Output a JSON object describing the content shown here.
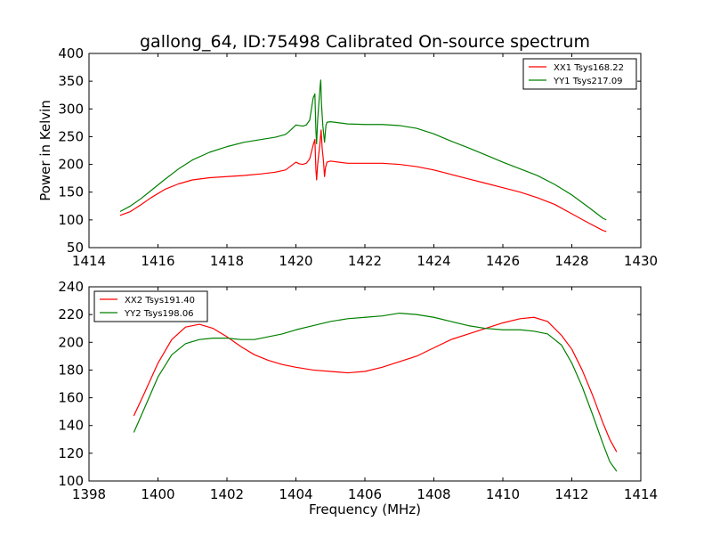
{
  "title": "gallong_64, ID:75498 Calibrated On-source spectrum",
  "colors": {
    "red": "#ff0000",
    "green": "#008000"
  },
  "chart_data": [
    {
      "type": "line",
      "xlabel": "",
      "ylabel": "Power in Kelvin",
      "xlim": [
        1414,
        1430
      ],
      "ylim": [
        50,
        400
      ],
      "xticks": [
        1414,
        1416,
        1418,
        1420,
        1422,
        1424,
        1426,
        1428,
        1430
      ],
      "yticks": [
        50,
        100,
        150,
        200,
        250,
        300,
        350,
        400
      ],
      "legend_position": "top-right",
      "series": [
        {
          "name": "XX1 Tsys168.22",
          "color": "#ff0000",
          "points": [
            [
              1414.9,
              108
            ],
            [
              1415.2,
              115
            ],
            [
              1415.5,
              127
            ],
            [
              1415.8,
              140
            ],
            [
              1416.2,
              155
            ],
            [
              1416.6,
              165
            ],
            [
              1417,
              172
            ],
            [
              1417.5,
              176
            ],
            [
              1418,
              178
            ],
            [
              1418.5,
              180
            ],
            [
              1419,
              183
            ],
            [
              1419.4,
              186
            ],
            [
              1419.7,
              190
            ],
            [
              1419.85,
              197
            ],
            [
              1420,
              204
            ],
            [
              1420.1,
              201
            ],
            [
              1420.2,
              200
            ],
            [
              1420.3,
              202
            ],
            [
              1420.4,
              210
            ],
            [
              1420.5,
              235
            ],
            [
              1420.55,
              245
            ],
            [
              1420.58,
              190
            ],
            [
              1420.6,
              172
            ],
            [
              1420.63,
              200
            ],
            [
              1420.7,
              240
            ],
            [
              1420.73,
              262
            ],
            [
              1420.76,
              230
            ],
            [
              1420.8,
              205
            ],
            [
              1420.83,
              178
            ],
            [
              1420.86,
              195
            ],
            [
              1420.9,
              204
            ],
            [
              1421,
              206
            ],
            [
              1421.5,
              202
            ],
            [
              1422,
              202
            ],
            [
              1422.5,
              202
            ],
            [
              1423,
              200
            ],
            [
              1423.5,
              196
            ],
            [
              1424,
              190
            ],
            [
              1424.5,
              182
            ],
            [
              1425,
              174
            ],
            [
              1425.5,
              166
            ],
            [
              1426,
              158
            ],
            [
              1426.5,
              150
            ],
            [
              1427,
              140
            ],
            [
              1427.5,
              128
            ],
            [
              1428,
              111
            ],
            [
              1428.5,
              94
            ],
            [
              1428.9,
              81
            ],
            [
              1429,
              79
            ]
          ]
        },
        {
          "name": "YY1 Tsys217.09",
          "color": "#008000",
          "points": [
            [
              1414.9,
              115
            ],
            [
              1415.2,
              125
            ],
            [
              1415.5,
              138
            ],
            [
              1415.8,
              153
            ],
            [
              1416.2,
              173
            ],
            [
              1416.6,
              192
            ],
            [
              1417,
              208
            ],
            [
              1417.5,
              222
            ],
            [
              1418,
              232
            ],
            [
              1418.5,
              240
            ],
            [
              1419,
              245
            ],
            [
              1419.4,
              249
            ],
            [
              1419.7,
              254
            ],
            [
              1419.85,
              262
            ],
            [
              1420,
              271
            ],
            [
              1420.1,
              270
            ],
            [
              1420.2,
              269
            ],
            [
              1420.3,
              271
            ],
            [
              1420.4,
              280
            ],
            [
              1420.5,
              320
            ],
            [
              1420.55,
              327
            ],
            [
              1420.58,
              260
            ],
            [
              1420.6,
              237
            ],
            [
              1420.63,
              280
            ],
            [
              1420.7,
              340
            ],
            [
              1420.72,
              352
            ],
            [
              1420.74,
              310
            ],
            [
              1420.78,
              270
            ],
            [
              1420.83,
              240
            ],
            [
              1420.87,
              270
            ],
            [
              1420.9,
              276
            ],
            [
              1421,
              277
            ],
            [
              1421.5,
              273
            ],
            [
              1422,
              272
            ],
            [
              1422.5,
              272
            ],
            [
              1423,
              270
            ],
            [
              1423.5,
              265
            ],
            [
              1424,
              255
            ],
            [
              1424.5,
              242
            ],
            [
              1425,
              230
            ],
            [
              1425.5,
              217
            ],
            [
              1426,
              204
            ],
            [
              1426.5,
              192
            ],
            [
              1427,
              180
            ],
            [
              1427.5,
              164
            ],
            [
              1428,
              145
            ],
            [
              1428.5,
              122
            ],
            [
              1428.9,
              103
            ],
            [
              1429,
              100
            ]
          ]
        }
      ]
    },
    {
      "type": "line",
      "xlabel": "Frequency (MHz)",
      "ylabel": "",
      "xlim": [
        1398,
        1414
      ],
      "ylim": [
        100,
        240
      ],
      "xticks": [
        1398,
        1400,
        1402,
        1404,
        1406,
        1408,
        1410,
        1412,
        1414
      ],
      "yticks": [
        100,
        120,
        140,
        160,
        180,
        200,
        220,
        240
      ],
      "legend_position": "top-left",
      "series": [
        {
          "name": "XX2 Tsys191.40",
          "color": "#ff0000",
          "points": [
            [
              1399.3,
              147
            ],
            [
              1399.6,
              163
            ],
            [
              1400,
              185
            ],
            [
              1400.4,
              202
            ],
            [
              1400.8,
              211
            ],
            [
              1401.2,
              213
            ],
            [
              1401.6,
              210
            ],
            [
              1402,
              204
            ],
            [
              1402.4,
              197
            ],
            [
              1402.8,
              191
            ],
            [
              1403.2,
              187
            ],
            [
              1403.6,
              184
            ],
            [
              1404,
              182
            ],
            [
              1404.5,
              180
            ],
            [
              1405,
              179
            ],
            [
              1405.5,
              178
            ],
            [
              1406,
              179
            ],
            [
              1406.5,
              182
            ],
            [
              1407,
              186
            ],
            [
              1407.5,
              190
            ],
            [
              1408,
              196
            ],
            [
              1408.5,
              202
            ],
            [
              1409,
              206
            ],
            [
              1409.5,
              210
            ],
            [
              1410,
              214
            ],
            [
              1410.5,
              217
            ],
            [
              1410.9,
              218
            ],
            [
              1411.3,
              215
            ],
            [
              1411.7,
              205
            ],
            [
              1412,
              195
            ],
            [
              1412.3,
              180
            ],
            [
              1412.6,
              162
            ],
            [
              1412.9,
              142
            ],
            [
              1413.1,
              130
            ],
            [
              1413.3,
              121
            ]
          ]
        },
        {
          "name": "YY2 Tsys198.06",
          "color": "#008000",
          "points": [
            [
              1399.3,
              135
            ],
            [
              1399.6,
              152
            ],
            [
              1400,
              175
            ],
            [
              1400.4,
              191
            ],
            [
              1400.8,
              199
            ],
            [
              1401.2,
              202
            ],
            [
              1401.6,
              203
            ],
            [
              1402,
              203
            ],
            [
              1402.4,
              202
            ],
            [
              1402.8,
              202
            ],
            [
              1403.2,
              204
            ],
            [
              1403.6,
              206
            ],
            [
              1404,
              209
            ],
            [
              1404.5,
              212
            ],
            [
              1405,
              215
            ],
            [
              1405.5,
              217
            ],
            [
              1406,
              218
            ],
            [
              1406.5,
              219
            ],
            [
              1407,
              221
            ],
            [
              1407.5,
              220
            ],
            [
              1408,
              218
            ],
            [
              1408.5,
              215
            ],
            [
              1409,
              212
            ],
            [
              1409.5,
              210
            ],
            [
              1410,
              209
            ],
            [
              1410.5,
              209
            ],
            [
              1410.9,
              208
            ],
            [
              1411.3,
              206
            ],
            [
              1411.7,
              198
            ],
            [
              1412,
              185
            ],
            [
              1412.3,
              168
            ],
            [
              1412.6,
              148
            ],
            [
              1412.9,
              127
            ],
            [
              1413.1,
              114
            ],
            [
              1413.3,
              107
            ]
          ]
        }
      ]
    }
  ]
}
